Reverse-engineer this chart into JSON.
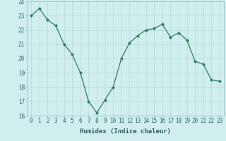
{
  "xlabel": "Humidex (Indice chaleur)",
  "x": [
    0,
    1,
    2,
    3,
    4,
    5,
    6,
    7,
    8,
    9,
    10,
    11,
    12,
    13,
    14,
    15,
    16,
    17,
    18,
    19,
    20,
    21,
    22,
    23
  ],
  "y": [
    23.0,
    23.5,
    22.7,
    22.3,
    21.0,
    20.3,
    19.0,
    17.0,
    16.2,
    17.1,
    18.0,
    20.0,
    21.1,
    21.6,
    22.0,
    22.1,
    22.4,
    21.5,
    21.8,
    21.3,
    19.8,
    19.6,
    18.5,
    18.4
  ],
  "ylim": [
    16,
    24
  ],
  "xlim": [
    -0.5,
    23.5
  ],
  "yticks": [
    16,
    17,
    18,
    19,
    20,
    21,
    22,
    23,
    24
  ],
  "xticks": [
    0,
    1,
    2,
    3,
    4,
    5,
    6,
    7,
    8,
    9,
    10,
    11,
    12,
    13,
    14,
    15,
    16,
    17,
    18,
    19,
    20,
    21,
    22,
    23
  ],
  "line_color": "#2e7d5e",
  "marker_color": "#2e7d5e",
  "bg_color": "#d0eeee",
  "grid_color": "#b8d8d8",
  "tick_label_color": "#2e5f5f",
  "xlabel_color": "#2e5f5f",
  "marker": "D",
  "markersize": 2.0,
  "linewidth": 0.9,
  "tick_fontsize": 5.5,
  "xlabel_fontsize": 6.5
}
